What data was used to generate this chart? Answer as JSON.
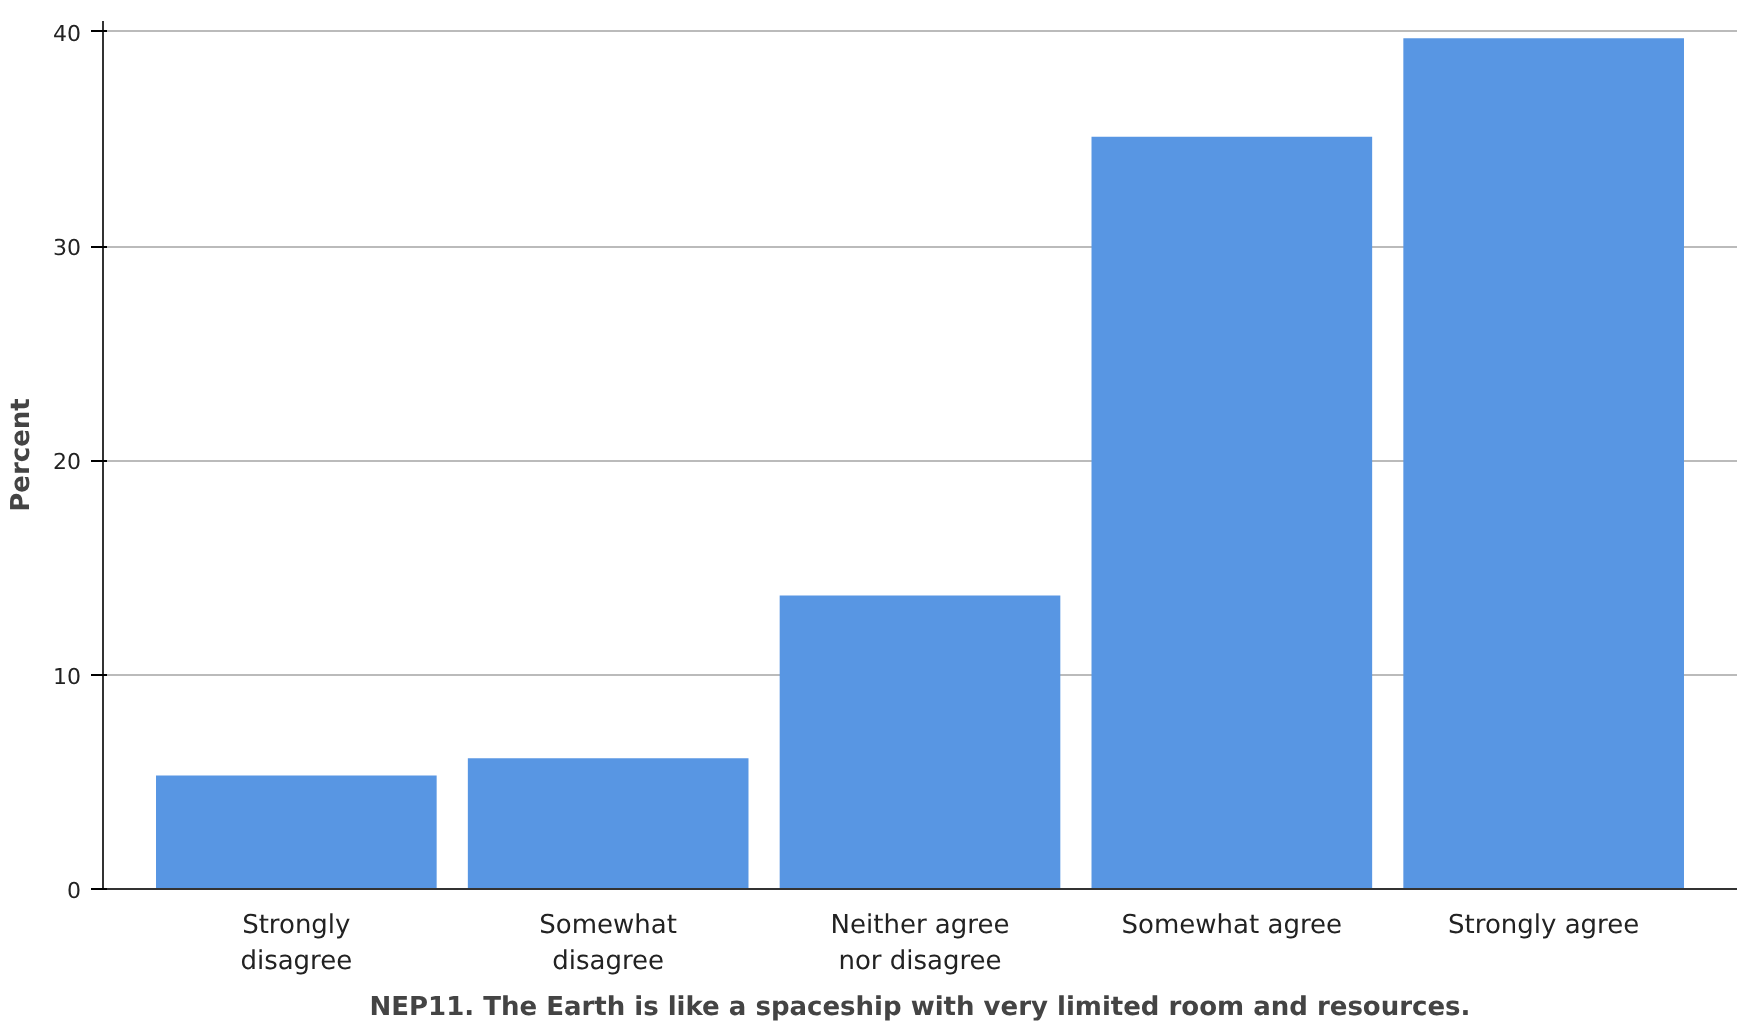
{
  "chart_data": {
    "type": "bar",
    "xlabel": "NEP11. The Earth is like a spaceship with very limited room and resources.",
    "ylabel": "Percent",
    "categories": [
      "Strongly disagree",
      "Somewhat disagree",
      "Neither agree nor disagree",
      "Somewhat agree",
      "Strongly agree"
    ],
    "values": [
      5.3,
      6.1,
      13.7,
      35.1,
      39.7
    ],
    "color": "#5896e3",
    "ylim": [
      0,
      40.5
    ],
    "yticks": [
      0,
      10,
      20,
      30,
      40
    ],
    "grid": "y"
  }
}
